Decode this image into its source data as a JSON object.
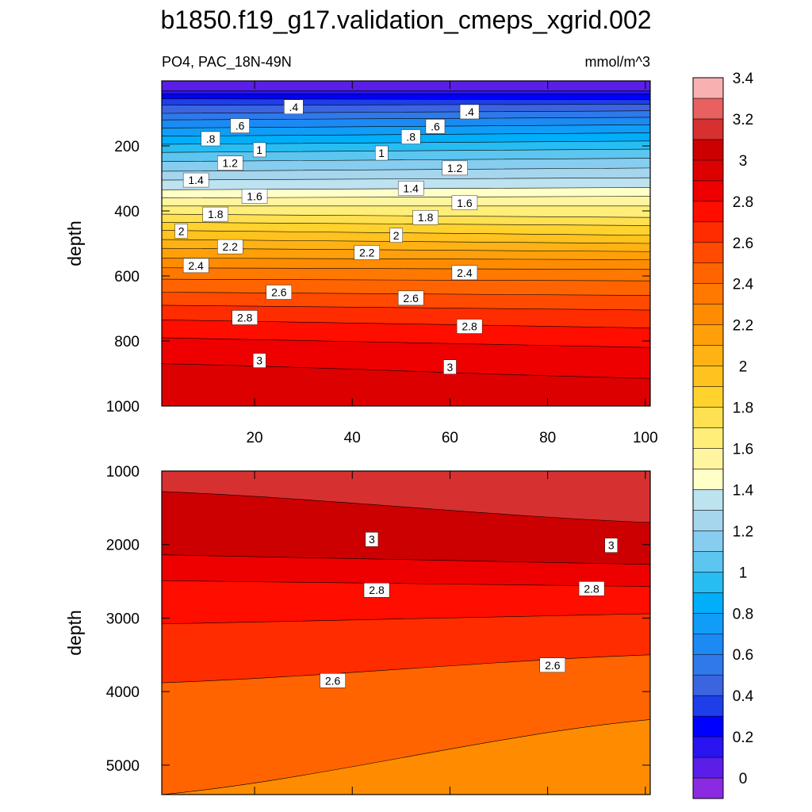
{
  "title": "b1850.f19_g17.validation_cmeps_xgrid.002",
  "subtitle_left": "PO4, PAC_18N-49N",
  "subtitle_right": "mmol/m^3",
  "colorbar": {
    "levels": [
      "0",
      "0.2",
      "0.4",
      "0.6",
      "0.8",
      "1",
      "1.2",
      "1.4",
      "1.6",
      "1.8",
      "2",
      "2.2",
      "2.4",
      "2.6",
      "2.8",
      "3",
      "3.2",
      "3.4"
    ],
    "colors": [
      "#8a2be2",
      "#5a1ee8",
      "#2a14f0",
      "#0000ff",
      "#1d3ee8",
      "#3a64e0",
      "#2f79ea",
      "#1b8af3",
      "#0f9df8",
      "#00aef9",
      "#28bdf2",
      "#5cc6f0",
      "#86cdef",
      "#a6d6ee",
      "#bde2f0",
      "#ffffc8",
      "#fff5a0",
      "#ffee78",
      "#ffe050",
      "#ffd22e",
      "#ffc21e",
      "#ffb214",
      "#ffa00a",
      "#ff8c00",
      "#ff7800",
      "#ff6400",
      "#ff4a00",
      "#ff2c00",
      "#ff0e00",
      "#ee0000",
      "#dd0000",
      "#cc0000",
      "#d73030",
      "#e86060",
      "#f8b0b0"
    ]
  },
  "chart_data": [
    {
      "type": "contour",
      "panel": "upper",
      "xlim": [
        1,
        101
      ],
      "ylim": [
        1000,
        0
      ],
      "ylabel": "depth",
      "xticks": [
        "20",
        "40",
        "60",
        "80",
        "100"
      ],
      "yticks": [
        "200",
        "400",
        "600",
        "800",
        "1000"
      ],
      "contour_depths": [
        {
          "level": 0.2,
          "y": [
            30,
            30
          ]
        },
        {
          "level": 0.3,
          "y": [
            40,
            40
          ]
        },
        {
          "level": 0.4,
          "y": [
            55,
            58
          ]
        },
        {
          "level": 0.5,
          "y": [
            75,
            72
          ]
        },
        {
          "level": 0.6,
          "y": [
            100,
            92
          ]
        },
        {
          "level": 0.7,
          "y": [
            120,
            112
          ]
        },
        {
          "level": 0.8,
          "y": [
            145,
            135
          ]
        },
        {
          "level": 0.9,
          "y": [
            170,
            160
          ]
        },
        {
          "level": 1.0,
          "y": [
            195,
            185
          ]
        },
        {
          "level": 1.1,
          "y": [
            220,
            210
          ]
        },
        {
          "level": 1.2,
          "y": [
            248,
            238
          ]
        },
        {
          "level": 1.3,
          "y": [
            278,
            268
          ]
        },
        {
          "level": 1.4,
          "y": [
            305,
            298
          ]
        },
        {
          "level": 1.5,
          "y": [
            335,
            328
          ]
        },
        {
          "level": 1.6,
          "y": [
            360,
            355
          ]
        },
        {
          "level": 1.7,
          "y": [
            385,
            385
          ]
        },
        {
          "level": 1.8,
          "y": [
            410,
            420
          ]
        },
        {
          "level": 1.9,
          "y": [
            435,
            445
          ]
        },
        {
          "level": 2.0,
          "y": [
            460,
            475
          ]
        },
        {
          "level": 2.1,
          "y": [
            488,
            500
          ]
        },
        {
          "level": 2.2,
          "y": [
            515,
            525
          ]
        },
        {
          "level": 2.3,
          "y": [
            545,
            550
          ]
        },
        {
          "level": 2.4,
          "y": [
            575,
            580
          ]
        },
        {
          "level": 2.5,
          "y": [
            610,
            615
          ]
        },
        {
          "level": 2.6,
          "y": [
            650,
            660
          ]
        },
        {
          "level": 2.7,
          "y": [
            690,
            705
          ]
        },
        {
          "level": 2.8,
          "y": [
            735,
            760
          ]
        },
        {
          "level": 2.9,
          "y": [
            790,
            820
          ]
        },
        {
          "level": 3.0,
          "y": [
            870,
            915
          ]
        }
      ],
      "labels": [
        {
          "text": ".4",
          "x": 28,
          "y": 80
        },
        {
          "text": ".4",
          "x": 64,
          "y": 95
        },
        {
          "text": ".6",
          "x": 17,
          "y": 138
        },
        {
          "text": ".6",
          "x": 57,
          "y": 140
        },
        {
          "text": ".8",
          "x": 11,
          "y": 178
        },
        {
          "text": ".8",
          "x": 52,
          "y": 172
        },
        {
          "text": "1",
          "x": 21,
          "y": 212
        },
        {
          "text": "1",
          "x": 46,
          "y": 222
        },
        {
          "text": "1.2",
          "x": 15,
          "y": 253
        },
        {
          "text": "1.2",
          "x": 61,
          "y": 268
        },
        {
          "text": "1.4",
          "x": 8,
          "y": 305
        },
        {
          "text": "1.4",
          "x": 52,
          "y": 330
        },
        {
          "text": "1.6",
          "x": 20,
          "y": 355
        },
        {
          "text": "1.6",
          "x": 63,
          "y": 375
        },
        {
          "text": "1.8",
          "x": 12,
          "y": 410
        },
        {
          "text": "1.8",
          "x": 55,
          "y": 420
        },
        {
          "text": "2",
          "x": 5,
          "y": 462
        },
        {
          "text": "2",
          "x": 49,
          "y": 475
        },
        {
          "text": "2.2",
          "x": 15,
          "y": 510
        },
        {
          "text": "2.2",
          "x": 43,
          "y": 528
        },
        {
          "text": "2.4",
          "x": 8,
          "y": 568
        },
        {
          "text": "2.4",
          "x": 63,
          "y": 590
        },
        {
          "text": "2.6",
          "x": 25,
          "y": 650
        },
        {
          "text": "2.6",
          "x": 52,
          "y": 668
        },
        {
          "text": "2.8",
          "x": 18,
          "y": 728
        },
        {
          "text": "2.8",
          "x": 64,
          "y": 755
        },
        {
          "text": "3",
          "x": 21,
          "y": 860
        },
        {
          "text": "3",
          "x": 60,
          "y": 880
        }
      ]
    },
    {
      "type": "contour",
      "panel": "lower",
      "xlim": [
        1,
        101
      ],
      "ylim": [
        5400,
        1000
      ],
      "ylabel": "depth",
      "yticks": [
        "1000",
        "2000",
        "3000",
        "4000",
        "5000"
      ],
      "contour_depths": [
        {
          "level": 3.2,
          "y": [
            1280,
            1700
          ]
        },
        {
          "level": 3.0,
          "y": [
            2140,
            2270
          ]
        },
        {
          "level": 2.9,
          "y": [
            2490,
            2570
          ]
        },
        {
          "level": 2.8,
          "y": [
            3080,
            2940
          ]
        },
        {
          "level": 2.6,
          "y": [
            3880,
            3500
          ]
        },
        {
          "level": 2.4,
          "y": [
            5400,
            4380
          ]
        }
      ],
      "labels": [
        {
          "text": "3",
          "x": 44,
          "y": 1930
        },
        {
          "text": "3",
          "x": 93,
          "y": 2010
        },
        {
          "text": "2.8",
          "x": 45,
          "y": 2620
        },
        {
          "text": "2.8",
          "x": 89,
          "y": 2600
        },
        {
          "text": "2.6",
          "x": 36,
          "y": 3850
        },
        {
          "text": "2.6",
          "x": 81,
          "y": 3640
        }
      ]
    }
  ]
}
